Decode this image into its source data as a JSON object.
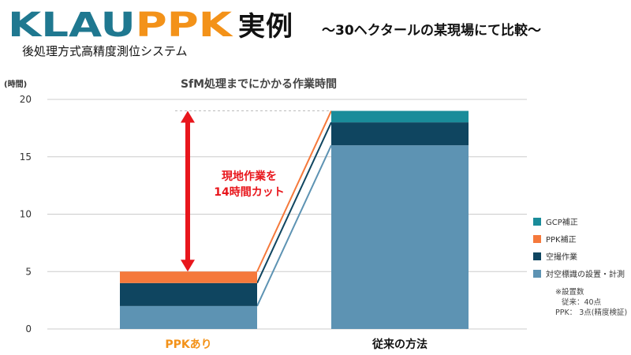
{
  "header": {
    "logo_text": "KLAUPPK",
    "logo_text_klau": "KLAU",
    "logo_text_ppk": "PPK",
    "title": "実例",
    "subtitle": "～30ヘクタールの某現場にて比較～",
    "caption": "後処理方式高精度測位システム"
  },
  "colors": {
    "gcp": "#1a8c9a",
    "ppk": "#f5793b",
    "field": "#0f4560",
    "measure": "#5d93b3",
    "arrow": "#e8161c",
    "logo_blue": "#1f7890",
    "logo_orange": "#f39219",
    "cat_ppk": "#f39219"
  },
  "annotation": {
    "line1": "現地作業を",
    "line2": "14時間カット"
  },
  "notes": {
    "heading": "※設置数",
    "line1": "従来：40点",
    "line2": "PPK：  3点(精度検証)"
  },
  "chart_data": {
    "type": "bar",
    "stacked": true,
    "title": "SfM処理までにかかる作業時間",
    "ylabel": "(時間)",
    "ylim": [
      0,
      20
    ],
    "yticks": [
      0,
      5,
      10,
      15,
      20
    ],
    "grid": true,
    "legend_position": "right",
    "categories": [
      "PPKあり",
      "従来の方法"
    ],
    "series": [
      {
        "name": "対空標識の設置・計測",
        "color": "#5d93b3",
        "values": [
          2,
          16
        ]
      },
      {
        "name": "空撮作業",
        "color": "#0f4560",
        "values": [
          2,
          2
        ]
      },
      {
        "name": "PPK補正",
        "color": "#f5793b",
        "values": [
          1,
          0
        ]
      },
      {
        "name": "GCP補正",
        "color": "#1a8c9a",
        "values": [
          0,
          1
        ]
      }
    ],
    "legend_order": [
      "GCP補正",
      "PPK補正",
      "空撮作業",
      "対空標識の設置・計測"
    ]
  }
}
